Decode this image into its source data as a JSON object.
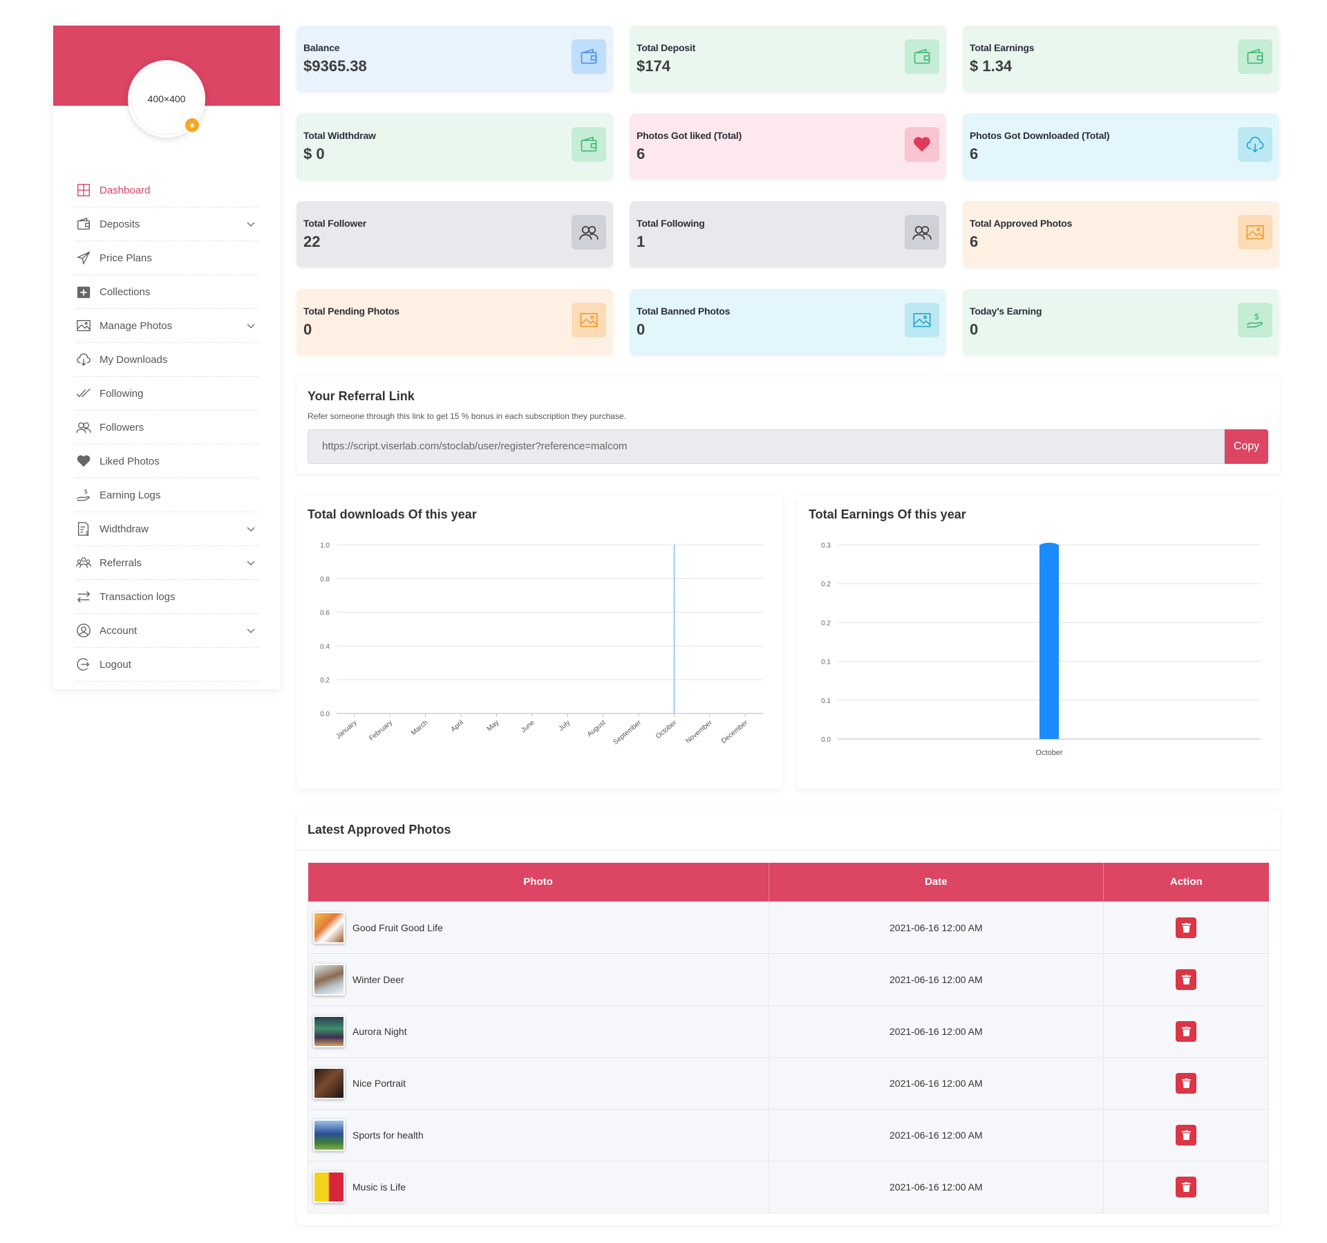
{
  "profile": {
    "avatar_text": "400×400"
  },
  "sidebar": {
    "items": [
      {
        "label": "Dashboard",
        "icon": "dashboard-icon",
        "active": true,
        "has_submenu": false
      },
      {
        "label": "Deposits",
        "icon": "wallet-icon",
        "has_submenu": true
      },
      {
        "label": "Price Plans",
        "icon": "paper-plane-icon",
        "has_submenu": false
      },
      {
        "label": "Collections",
        "icon": "plus-box-icon",
        "has_submenu": false
      },
      {
        "label": "Manage Photos",
        "icon": "image-icon",
        "has_submenu": true
      },
      {
        "label": "My Downloads",
        "icon": "cloud-download-icon",
        "has_submenu": false
      },
      {
        "label": "Following",
        "icon": "double-check-icon",
        "has_submenu": false
      },
      {
        "label": "Followers",
        "icon": "users-icon",
        "has_submenu": false
      },
      {
        "label": "Liked Photos",
        "icon": "heart-icon",
        "has_submenu": false
      },
      {
        "label": "Earning Logs",
        "icon": "hand-dollar-icon",
        "has_submenu": false
      },
      {
        "label": "Widthdraw",
        "icon": "document-dollar-icon",
        "has_submenu": true
      },
      {
        "label": "Referrals",
        "icon": "group-icon",
        "has_submenu": true
      },
      {
        "label": "Transaction logs",
        "icon": "transfer-arrows-icon",
        "has_submenu": false
      },
      {
        "label": "Account",
        "icon": "user-circle-icon",
        "has_submenu": true
      },
      {
        "label": "Logout",
        "icon": "logout-icon",
        "has_submenu": false
      }
    ]
  },
  "stats": [
    {
      "label": "Balance",
      "value": "$9365.38",
      "color": "blue",
      "icon": "wallet-icon"
    },
    {
      "label": "Total Deposit",
      "value": "$174",
      "color": "green",
      "icon": "wallet-icon"
    },
    {
      "label": "Total Earnings",
      "value": "$ 1.34",
      "color": "green",
      "icon": "wallet-icon"
    },
    {
      "label": "Total Widthdraw",
      "value": "$ 0",
      "color": "green",
      "icon": "wallet-icon"
    },
    {
      "label": "Photos Got liked (Total)",
      "value": "6",
      "color": "pink",
      "icon": "heart-icon"
    },
    {
      "label": "Photos Got Downloaded (Total)",
      "value": "6",
      "color": "cyan",
      "icon": "cloud-download-icon"
    },
    {
      "label": "Total Follower",
      "value": "22",
      "color": "gray",
      "icon": "users-icon"
    },
    {
      "label": "Total Following",
      "value": "1",
      "color": "gray",
      "icon": "users-icon"
    },
    {
      "label": "Total Approved Photos",
      "value": "6",
      "color": "orange",
      "icon": "image-icon"
    },
    {
      "label": "Total Pending Photos",
      "value": "0",
      "color": "orange",
      "icon": "image-icon"
    },
    {
      "label": "Total Banned Photos",
      "value": "0",
      "color": "cyan",
      "icon": "image-icon"
    },
    {
      "label": "Today's Earning",
      "value": "0",
      "color": "green",
      "icon": "hand-dollar-icon"
    }
  ],
  "colors": {
    "accent": "#dc4563",
    "chart_line": "#6fb3f5",
    "chart_bar": "#1a8cff",
    "delete": "#dc3545"
  },
  "referral": {
    "title": "Your Referral Link",
    "subtitle": "Refer someone through this link to get 15 % bonus in each subscription they purchase.",
    "link": "https://script.viserlab.com/stoclab/user/register?reference=malcom",
    "copy_label": "Copy"
  },
  "chart_data": [
    {
      "type": "line",
      "title": "Total downloads Of this year",
      "categories": [
        "January",
        "February",
        "March",
        "April",
        "May",
        "June",
        "July",
        "August",
        "September",
        "October",
        "November",
        "December"
      ],
      "series": [
        {
          "values": [
            0,
            0,
            0,
            0,
            0,
            0,
            0,
            0,
            0,
            1,
            0,
            0
          ]
        }
      ],
      "y_ticks": [
        "0.0",
        "0.2",
        "0.4",
        "0.6",
        "0.8",
        "1.0"
      ],
      "ylim": [
        0,
        1
      ],
      "grid": true,
      "legend": "none"
    },
    {
      "type": "bar",
      "title": "Total Earnings Of this year",
      "categories": [
        "October"
      ],
      "values": [
        0.3
      ],
      "y_ticks": [
        "0.0",
        "0.1",
        "0.1",
        "0.2",
        "0.2",
        "0.3"
      ],
      "ylim": [
        0,
        0.3
      ],
      "grid": true,
      "legend": "none"
    }
  ],
  "table": {
    "title": "Latest Approved Photos",
    "headers": {
      "photo": "Photo",
      "date": "Date",
      "action": "Action"
    },
    "rows": [
      {
        "title": "Good Fruit Good Life",
        "date": "2021-06-16 12:00 AM"
      },
      {
        "title": "Winter Deer",
        "date": "2021-06-16 12:00 AM"
      },
      {
        "title": "Aurora Night",
        "date": "2021-06-16 12:00 AM"
      },
      {
        "title": "Nice Portrait",
        "date": "2021-06-16 12:00 AM"
      },
      {
        "title": "Sports for health",
        "date": "2021-06-16 12:00 AM"
      },
      {
        "title": "Music is Life",
        "date": "2021-06-16 12:00 AM"
      }
    ]
  }
}
